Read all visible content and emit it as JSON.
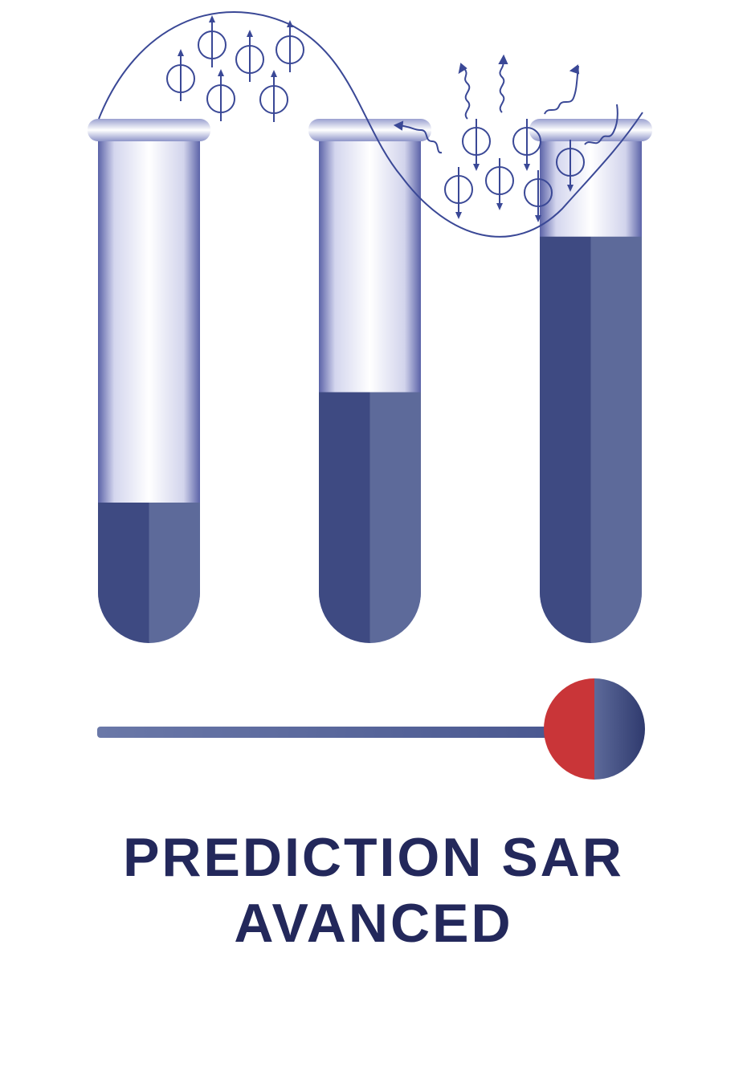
{
  "title": {
    "line1": "PREDICTION SAR",
    "line2": "AVANCED"
  },
  "tubes": [
    {
      "name": "tube-left",
      "fill_fraction": 0.28
    },
    {
      "name": "tube-middle",
      "fill_fraction": 0.5
    },
    {
      "name": "tube-right",
      "fill_fraction": 0.81
    }
  ],
  "colors": {
    "dark_blue": "#3e4a82",
    "mid_blue": "#5d6a9a",
    "outline_blue": "#3a4896",
    "title_navy": "#23285b",
    "knob_red": "#c93538"
  },
  "icons": [
    "spin-up-icon",
    "spin-down-icon",
    "wavy-arrow-icon",
    "slider-knob-icon"
  ]
}
